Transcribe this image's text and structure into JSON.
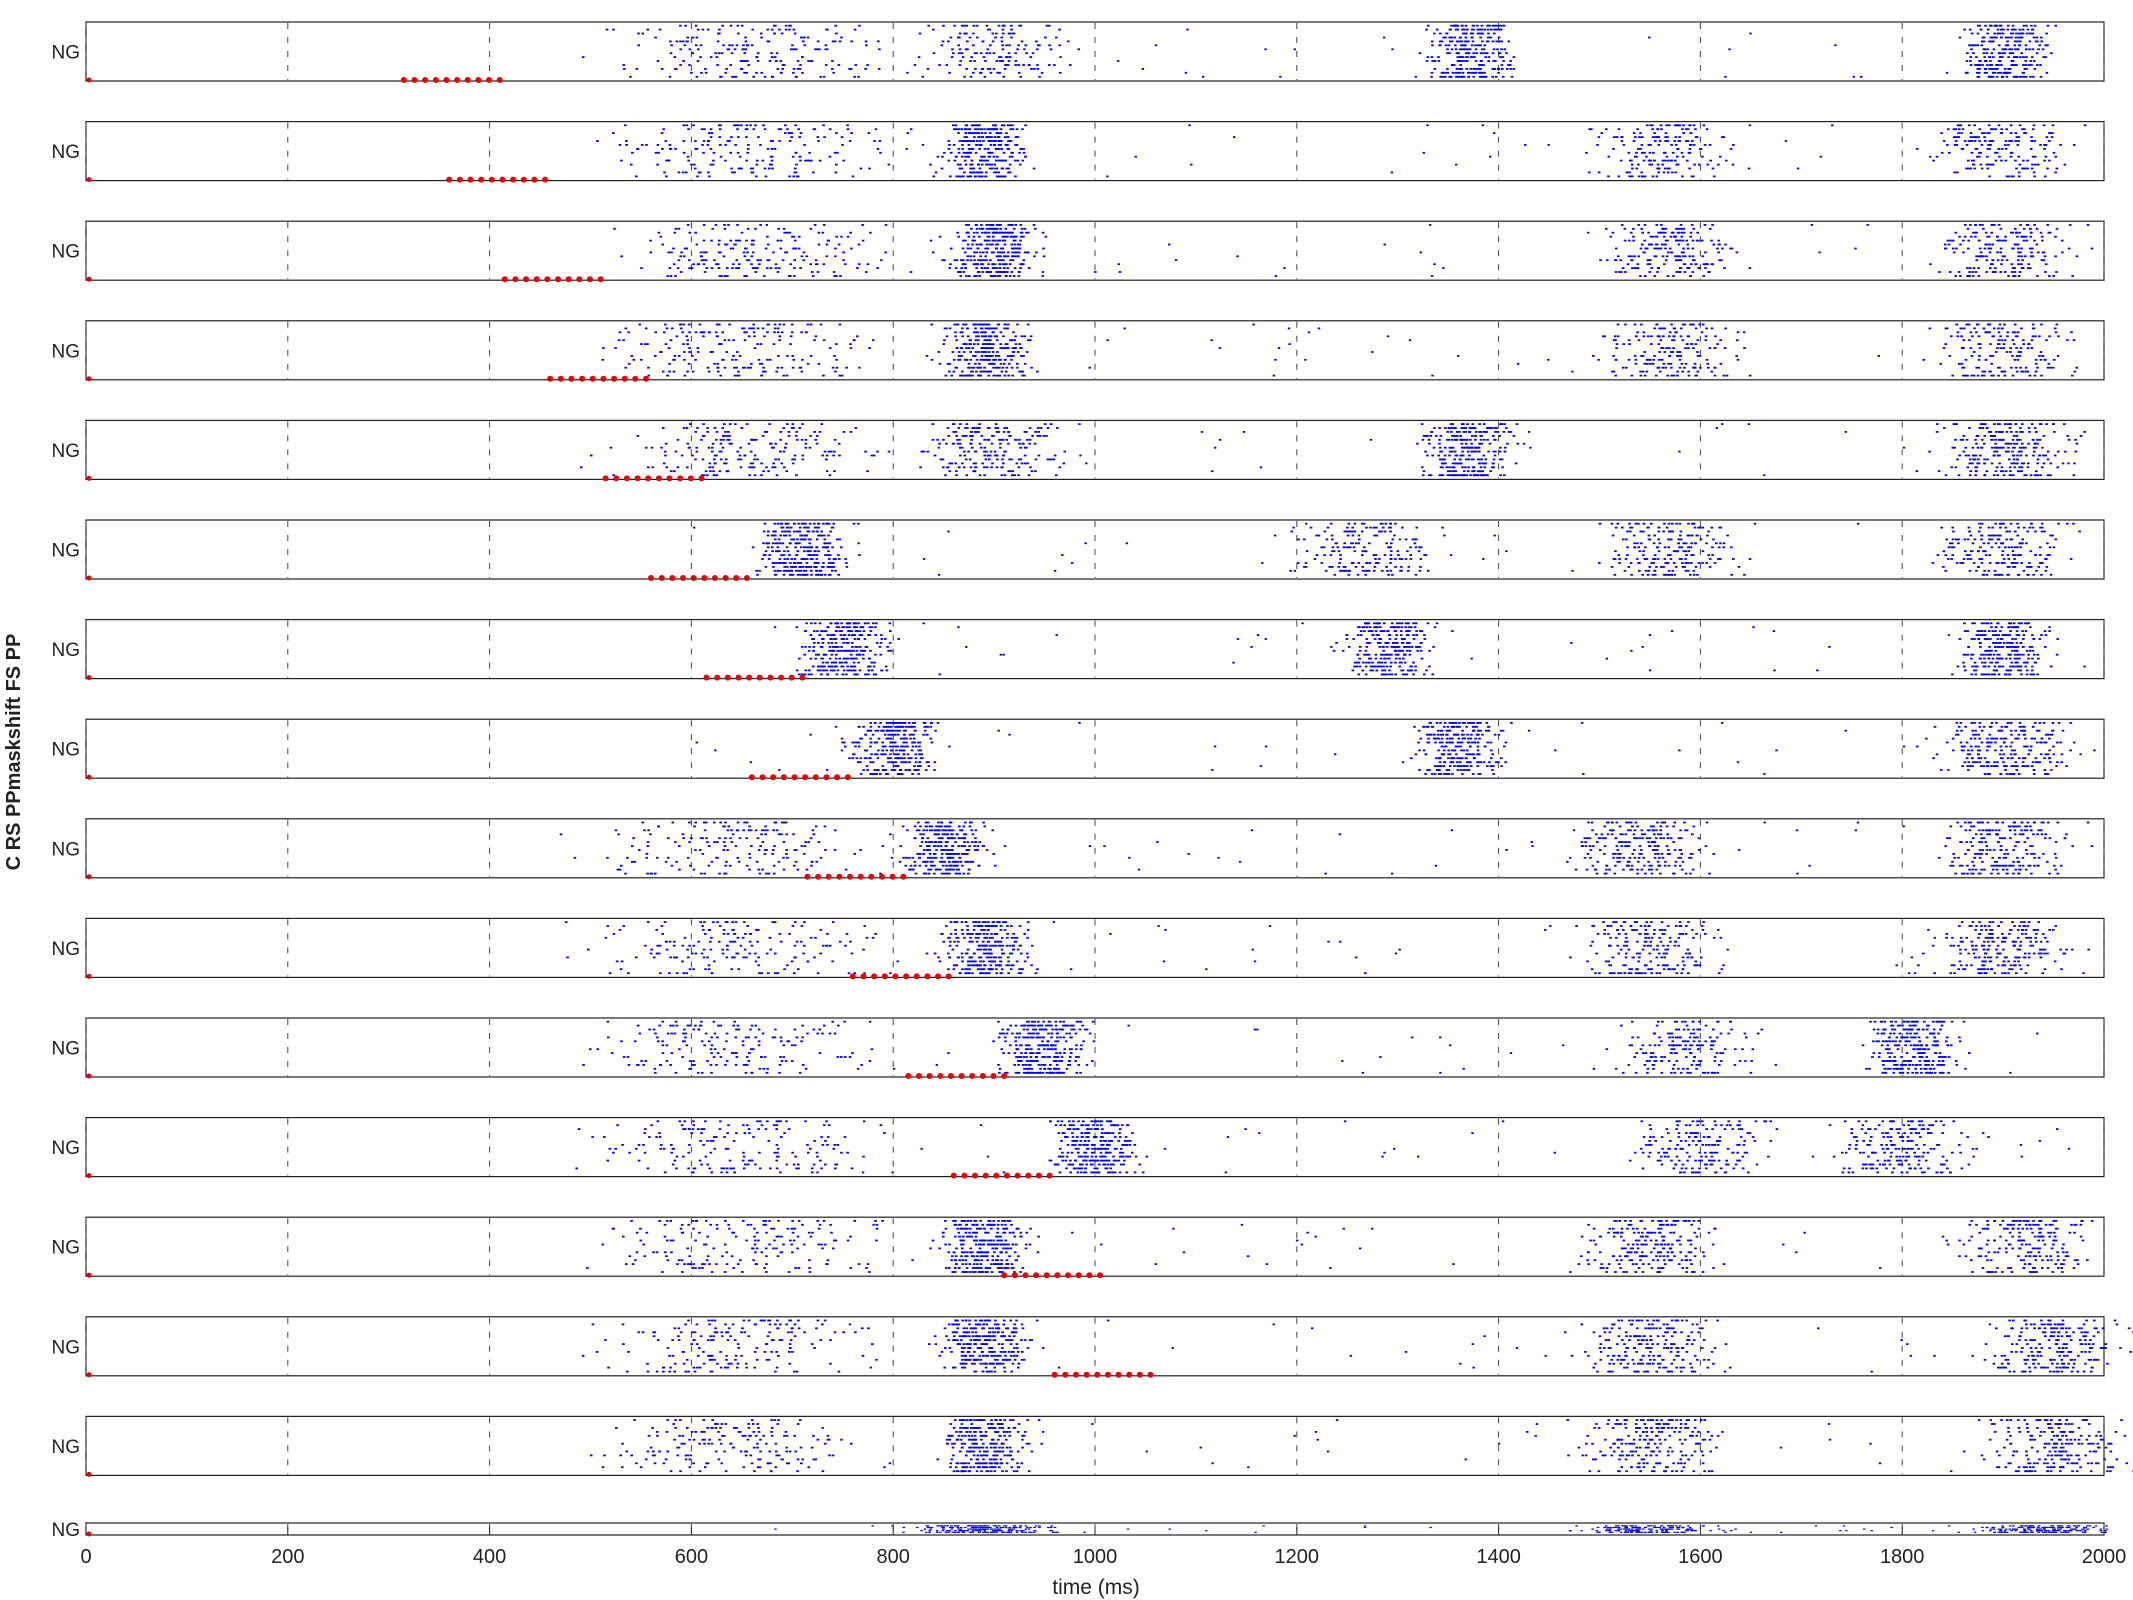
{
  "chart_data": {
    "type": "scatter",
    "subtype": "spike-raster-stack",
    "xlabel": "time (ms)",
    "ylabel": "C RS PPmaskshift FS PP",
    "row_label": "NG",
    "xlim": [
      0,
      2000
    ],
    "xticks": [
      0,
      200,
      400,
      600,
      800,
      1000,
      1200,
      1400,
      1600,
      1800,
      2000
    ],
    "grid": "vertical dashed at ticks",
    "colors": {
      "spikes": "#0000ee",
      "stimulus": "#ee0000",
      "axes": "#222222"
    },
    "panels": [
      {
        "stim": [
          315,
          410
        ],
        "burst_centers": [
          660,
          900,
          1370,
          1900
        ],
        "burst_density": [
          0.6,
          0.4,
          0.9,
          0.9
        ]
      },
      {
        "stim": [
          360,
          455
        ],
        "burst_centers": [
          660,
          890,
          1560,
          1900
        ],
        "burst_density": [
          0.6,
          1.0,
          0.5,
          0.5
        ]
      },
      {
        "stim": [
          415,
          510
        ],
        "burst_centers": [
          660,
          900,
          1570,
          1900
        ],
        "burst_density": [
          0.6,
          1.0,
          0.6,
          0.6
        ]
      },
      {
        "stim": [
          460,
          555
        ],
        "burst_centers": [
          640,
          890,
          1570,
          1900
        ],
        "burst_density": [
          0.6,
          1.0,
          0.5,
          0.5
        ]
      },
      {
        "stim": [
          515,
          610
        ],
        "burst_centers": [
          660,
          900,
          1370,
          1900
        ],
        "burst_density": [
          0.6,
          0.6,
          0.9,
          0.8
        ]
      },
      {
        "stim": [
          560,
          655
        ],
        "burst_centers": [
          710,
          1270,
          1570,
          1900
        ],
        "burst_density": [
          1.0,
          0.5,
          0.6,
          0.6
        ]
      },
      {
        "stim": [
          615,
          710
        ],
        "burst_centers": [
          750,
          1290,
          1900
        ],
        "burst_density": [
          1.0,
          0.9,
          0.9
        ]
      },
      {
        "stim": [
          660,
          755
        ],
        "burst_centers": [
          800,
          1360,
          1900
        ],
        "burst_density": [
          1.0,
          0.9,
          0.8
        ]
      },
      {
        "stim": [
          715,
          810
        ],
        "burst_centers": [
          640,
          850,
          1540,
          1900
        ],
        "burst_density": [
          0.5,
          1.0,
          0.7,
          0.7
        ]
      },
      {
        "stim": [
          760,
          855
        ],
        "burst_centers": [
          640,
          890,
          1550,
          1900
        ],
        "burst_density": [
          0.5,
          1.0,
          0.6,
          0.7
        ]
      },
      {
        "stim": [
          815,
          910
        ],
        "burst_centers": [
          640,
          950,
          1580,
          1810
        ],
        "burst_density": [
          0.5,
          1.0,
          0.5,
          0.9
        ]
      },
      {
        "stim": [
          860,
          955
        ],
        "burst_centers": [
          640,
          1000,
          1600,
          1800
        ],
        "burst_density": [
          0.5,
          1.0,
          0.5,
          0.6
        ]
      },
      {
        "stim": [
          910,
          1005
        ],
        "burst_centers": [
          640,
          890,
          1550,
          1920
        ],
        "burst_density": [
          0.5,
          1.0,
          0.7,
          0.6
        ]
      },
      {
        "stim": [
          960,
          1055
        ],
        "burst_centers": [
          640,
          890,
          1550,
          1950
        ],
        "burst_density": [
          0.5,
          1.0,
          0.7,
          0.7
        ]
      },
      {
        "stim": [],
        "burst_centers": [
          640,
          890,
          1550,
          1950
        ],
        "burst_density": [
          0.5,
          1.0,
          0.7,
          0.7
        ]
      },
      {
        "stim": [],
        "burst_centers": [
          890,
          1550,
          1940
        ],
        "burst_density": [
          0.6,
          0.5,
          0.5
        ]
      }
    ]
  }
}
